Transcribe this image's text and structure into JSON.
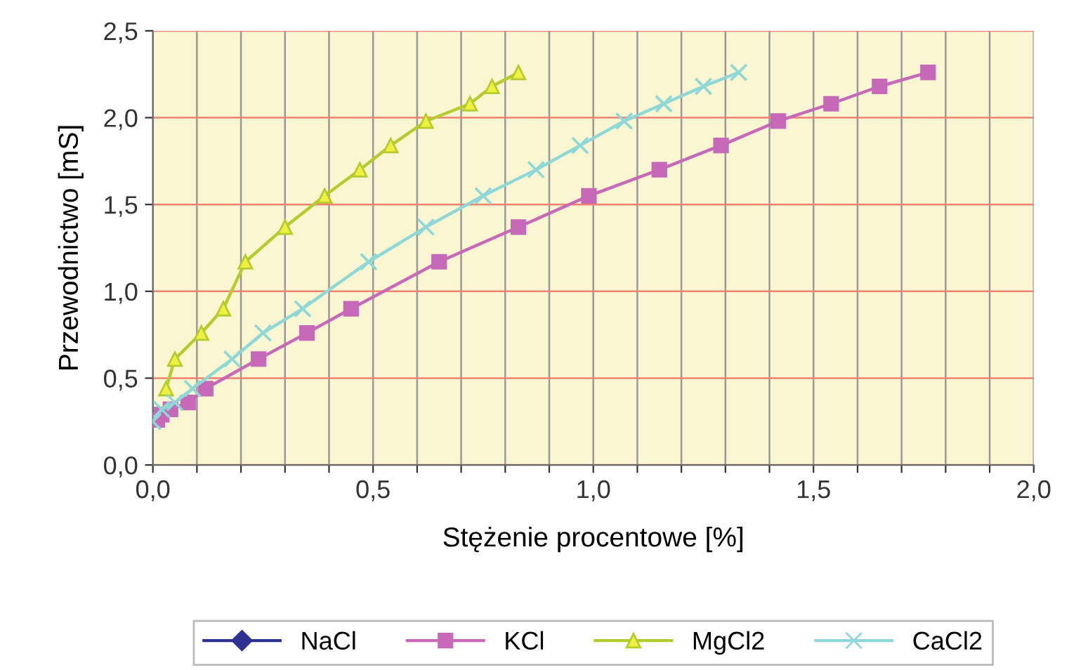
{
  "chart_data": {
    "type": "line",
    "xlabel": "Stężenie procentowe [%]",
    "ylabel": "Przewodnictwo [mS]",
    "xlim": [
      0,
      2
    ],
    "ylim": [
      0,
      2.5
    ],
    "xticks": [
      {
        "value": 0,
        "label": "0,0"
      },
      {
        "value": 0.1,
        "label": null
      },
      {
        "value": 0.2,
        "label": null
      },
      {
        "value": 0.3,
        "label": null
      },
      {
        "value": 0.4,
        "label": null
      },
      {
        "value": 0.5,
        "label": "0,5"
      },
      {
        "value": 0.6,
        "label": null
      },
      {
        "value": 0.7,
        "label": null
      },
      {
        "value": 0.8,
        "label": null
      },
      {
        "value": 0.9,
        "label": null
      },
      {
        "value": 1.0,
        "label": "1,0"
      },
      {
        "value": 1.1,
        "label": null
      },
      {
        "value": 1.2,
        "label": null
      },
      {
        "value": 1.3,
        "label": null
      },
      {
        "value": 1.4,
        "label": null
      },
      {
        "value": 1.5,
        "label": "1,5"
      },
      {
        "value": 1.6,
        "label": null
      },
      {
        "value": 1.7,
        "label": null
      },
      {
        "value": 1.8,
        "label": null
      },
      {
        "value": 1.9,
        "label": null
      },
      {
        "value": 2.0,
        "label": "2,0"
      }
    ],
    "yticks": [
      {
        "value": 0,
        "label": "0,0"
      },
      {
        "value": 0.5,
        "label": "0,5"
      },
      {
        "value": 1.0,
        "label": "1,0"
      },
      {
        "value": 1.5,
        "label": "1,5"
      },
      {
        "value": 2.0,
        "label": "2,0"
      },
      {
        "value": 2.5,
        "label": "2,5"
      }
    ],
    "grid": true,
    "legend": "bottom",
    "series": [
      {
        "name": "NaCl",
        "color": "#2e3192",
        "marker": "diamond"
      },
      {
        "name": "KCl",
        "color": "#c768b8",
        "marker": "square",
        "x": [
          0.01,
          0.02,
          0.04,
          0.08,
          0.12,
          0.24,
          0.35,
          0.45,
          0.65,
          0.83,
          0.99,
          1.15,
          1.29,
          1.42,
          1.54,
          1.65,
          1.76
        ],
        "values": [
          0.26,
          0.29,
          0.32,
          0.36,
          0.44,
          0.61,
          0.76,
          0.9,
          1.17,
          1.37,
          1.55,
          1.7,
          1.84,
          1.98,
          2.08,
          2.18,
          2.26
        ]
      },
      {
        "name": "MgCl2",
        "color": "#b5cc2e",
        "marker": "triangle",
        "x": [
          0.03,
          0.05,
          0.11,
          0.16,
          0.21,
          0.3,
          0.39,
          0.47,
          0.54,
          0.62,
          0.72,
          0.77,
          0.83
        ],
        "values": [
          0.44,
          0.61,
          0.76,
          0.9,
          1.17,
          1.37,
          1.55,
          1.7,
          1.84,
          1.98,
          2.08,
          2.18,
          2.26
        ]
      },
      {
        "name": "CaCl2",
        "color": "#8fd8d8",
        "marker": "cross",
        "x": [
          0,
          0.02,
          0.05,
          0.09,
          0.18,
          0.25,
          0.34,
          0.49,
          0.62,
          0.75,
          0.87,
          0.97,
          1.07,
          1.16,
          1.25,
          1.33
        ],
        "values": [
          0.25,
          0.32,
          0.36,
          0.44,
          0.61,
          0.76,
          0.9,
          1.17,
          1.37,
          1.55,
          1.7,
          1.84,
          1.98,
          2.08,
          2.18,
          2.26
        ]
      }
    ]
  }
}
